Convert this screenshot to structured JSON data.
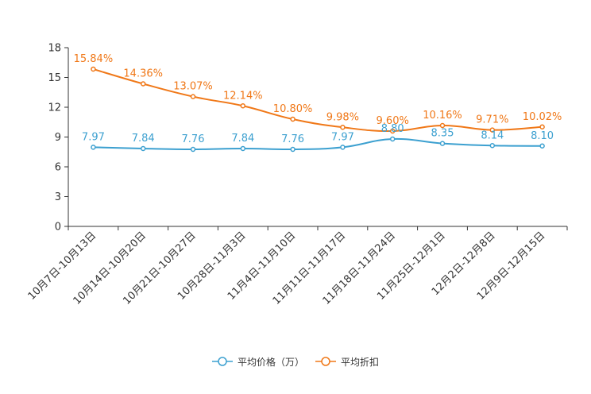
{
  "chart_data": {
    "type": "line",
    "title": "",
    "xlabel": "",
    "ylabel": "",
    "ylim": [
      0,
      18
    ],
    "yticks": [
      0,
      3,
      6,
      9,
      12,
      15,
      18
    ],
    "categories": [
      "10月7日-10月13日",
      "10月14日-10月20日",
      "10月21日-10月27日",
      "10月28日-11月3日",
      "11月4日-11月10日",
      "11月11日-11月17日",
      "11月18日-11月24日",
      "11月25日-12月1日",
      "12月2日-12月8日",
      "12月9日-12月15日"
    ],
    "series": [
      {
        "name": "平均价格（万）",
        "color": "#3ca0d0",
        "values": [
          7.97,
          7.84,
          7.76,
          7.84,
          7.76,
          7.97,
          8.8,
          8.35,
          8.14,
          8.1
        ],
        "labels": [
          "7.97",
          "7.84",
          "7.76",
          "7.84",
          "7.76",
          "7.97",
          "8.80",
          "8.35",
          "8.14",
          "8.10"
        ]
      },
      {
        "name": "平均折扣",
        "color": "#f07818",
        "values": [
          15.84,
          14.36,
          13.07,
          12.14,
          10.8,
          9.98,
          9.6,
          10.16,
          9.71,
          10.02
        ],
        "labels": [
          "15.84%",
          "14.36%",
          "13.07%",
          "12.14%",
          "10.80%",
          "9.98%",
          "9.60%",
          "10.16%",
          "9.71%",
          "10.02%"
        ]
      }
    ],
    "legend_position": "bottom-center",
    "grid": false
  }
}
